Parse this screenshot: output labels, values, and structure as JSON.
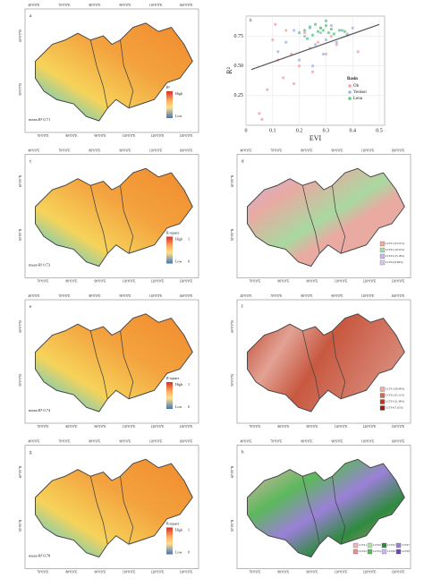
{
  "lon_labels_top": [
    "40°0'0\"E",
    "70°0'0\"E",
    "80°0'0\"E",
    "90°0'0\"E",
    "110°0'0\"E",
    "160°0'0\"E"
  ],
  "lon_labels_bottom": [
    "70°0'0\"E",
    "80°0'0\"E",
    "90°0'0\"E",
    "110°0'0\"E",
    "120°0'0\"E",
    "130°0'0\"E"
  ],
  "lat_labels": [
    "60°0'0\"N",
    "50°0'0\"N"
  ],
  "panels": [
    {
      "label": "a",
      "style": "r2",
      "mean_label": "mean R² 0.71",
      "legend_title": "R²",
      "high": "High",
      "low": "Low"
    },
    {
      "label": "c",
      "style": "r2",
      "mean_label": "mean R² 0.73",
      "legend_title": "R-square",
      "high": "High",
      "low": "Low",
      "max": 1,
      "min": 0
    },
    {
      "label": "d",
      "style": "lc1",
      "classes": [
        {
          "name": "LCTS1 (55.31%)",
          "color": "#e9aaa2"
        },
        {
          "name": "LCTS2 (19.52%)",
          "color": "#a8d9a0"
        },
        {
          "name": "LCTS3 (15.18%)",
          "color": "#c4b6e6"
        },
        {
          "name": "LCTS4 (9.99%)",
          "color": "#d9c6f0"
        }
      ]
    },
    {
      "label": "e",
      "style": "r2",
      "mean_label": "mean R² 0.74",
      "legend_title": "R-square",
      "high": "High",
      "low": "Low",
      "max": 1,
      "min": 0
    },
    {
      "label": "f",
      "style": "lc2",
      "classes": [
        {
          "name": "LCTS1 (56.49%)",
          "color": "#e8b0a6"
        },
        {
          "name": "LCTS2 (25.11%)",
          "color": "#d06a52"
        },
        {
          "name": "LCTS3 (11.38%)",
          "color": "#b83a25"
        },
        {
          "name": "LCTS4 (7.02%)",
          "color": "#8f2414"
        }
      ]
    },
    {
      "label": "g",
      "style": "r2",
      "mean_label": "mean R² 0.78",
      "legend_title": "R-square",
      "high": "High",
      "low": "Low",
      "max": 1,
      "min": 0
    },
    {
      "label": "h",
      "style": "lc3",
      "classes": [
        {
          "name": "LCTS1",
          "color": "#f2b5b5"
        },
        {
          "name": "LCTS2",
          "color": "#e89090"
        },
        {
          "name": "LCTS3",
          "color": "#b0e0a8"
        },
        {
          "name": "LCTS4",
          "color": "#5cb85c"
        },
        {
          "name": "LCTS5",
          "color": "#2e8b3e"
        },
        {
          "name": "LCTS6",
          "color": "#c8b8ec"
        },
        {
          "name": "LCTS7",
          "color": "#9b7fd8"
        },
        {
          "name": "LCTS8",
          "color": "#6a4ab8"
        }
      ]
    }
  ],
  "chart_data": {
    "type": "scatter",
    "panel_label": "b",
    "x_label": "EVI",
    "y_label": "R²",
    "xlim": [
      0,
      0.52
    ],
    "ylim": [
      0,
      0.92
    ],
    "xticks": [
      0,
      0.1,
      0.2,
      0.3,
      0.4,
      0.5
    ],
    "yticks": [
      {
        "value": 0.25,
        "label": "0.25"
      },
      {
        "value": 0.5,
        "label": "0.50"
      },
      {
        "value": 0.75,
        "label": "0.75"
      }
    ],
    "grid": true,
    "legend_title": "Basin",
    "series": [
      {
        "name": "Ob",
        "color": "#f4a3a8",
        "x": [
          0.05,
          0.08,
          0.1,
          0.12,
          0.14,
          0.15,
          0.17,
          0.18,
          0.2,
          0.22,
          0.24,
          0.25,
          0.27,
          0.28,
          0.3,
          0.32,
          0.34,
          0.36,
          0.38,
          0.42,
          0.06,
          0.11
        ],
        "values": [
          0.1,
          0.3,
          0.72,
          0.55,
          0.4,
          0.8,
          0.6,
          0.35,
          0.5,
          0.78,
          0.65,
          0.45,
          0.7,
          0.82,
          0.6,
          0.75,
          0.68,
          0.8,
          0.77,
          0.62,
          0.05,
          0.85
        ]
      },
      {
        "name": "Yenisei",
        "color": "#9fb6e6",
        "x": [
          0.12,
          0.15,
          0.18,
          0.2,
          0.22,
          0.24,
          0.26,
          0.28,
          0.3,
          0.32,
          0.34,
          0.36,
          0.38,
          0.4,
          0.25,
          0.29
        ],
        "values": [
          0.62,
          0.7,
          0.8,
          0.55,
          0.75,
          0.82,
          0.68,
          0.78,
          0.72,
          0.84,
          0.7,
          0.8,
          0.76,
          0.82,
          0.5,
          0.6
        ]
      },
      {
        "name": "Lena",
        "color": "#5fc985",
        "x": [
          0.2,
          0.22,
          0.24,
          0.25,
          0.26,
          0.27,
          0.28,
          0.29,
          0.3,
          0.31,
          0.32,
          0.33,
          0.35,
          0.37,
          0.23,
          0.3
        ],
        "values": [
          0.78,
          0.8,
          0.83,
          0.76,
          0.85,
          0.79,
          0.82,
          0.8,
          0.84,
          0.78,
          0.81,
          0.77,
          0.8,
          0.79,
          0.73,
          0.88
        ]
      }
    ],
    "trend": {
      "color": "#555555",
      "x": [
        0.02,
        0.5
      ],
      "values": [
        0.47,
        0.85
      ]
    }
  }
}
